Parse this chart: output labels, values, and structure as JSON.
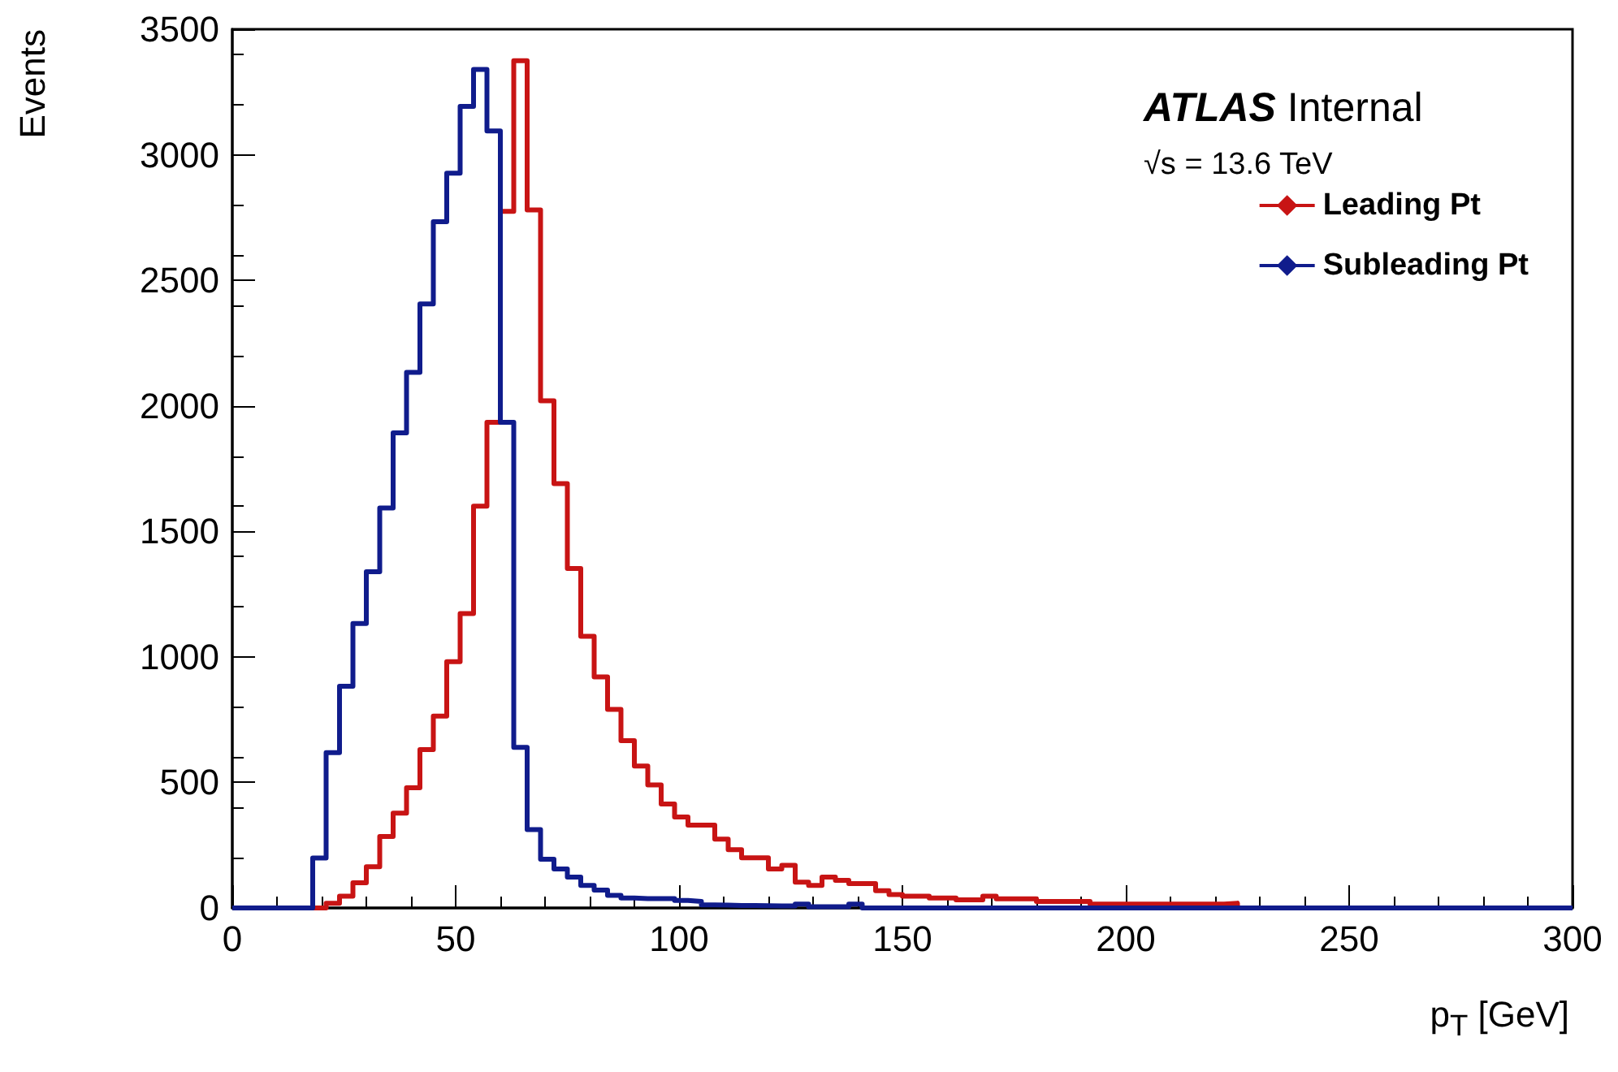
{
  "chart_data": {
    "type": "histogram",
    "xlabel": "p$_{T}$ [GeV]",
    "ylabel": "Events",
    "annotations": [
      "ATLAS Internal",
      "√s = 13.6 TeV"
    ],
    "bins": [
      0,
      3,
      6,
      9,
      12,
      15,
      18,
      21,
      24,
      27,
      30,
      33,
      36,
      39,
      42,
      45,
      48,
      51,
      54,
      57,
      60,
      63,
      66,
      69,
      72,
      75,
      78,
      81,
      84,
      87,
      90,
      93,
      96,
      99,
      102,
      105,
      108,
      111,
      114,
      117,
      120,
      123,
      126,
      129,
      132,
      135,
      138,
      141,
      144,
      147,
      150,
      153,
      156,
      159,
      162,
      165,
      168,
      171,
      174,
      177,
      180,
      183,
      186,
      189,
      192,
      195,
      198,
      201,
      204,
      207,
      210,
      213,
      216,
      219,
      222,
      225,
      228,
      231,
      234,
      237,
      240,
      243,
      246,
      249,
      252,
      255,
      258,
      261,
      264,
      267,
      270,
      273,
      276,
      279,
      282,
      285,
      288,
      291,
      294,
      297,
      300
    ],
    "series": [
      {
        "name": "Leading Pt",
        "color": "#c81414",
        "values": [
          0,
          0,
          0,
          0,
          0,
          0,
          0,
          19,
          47,
          100,
          164,
          285,
          378,
          479,
          631,
          764,
          981,
          1173,
          1600,
          1934,
          2775,
          3375,
          2780,
          2020,
          1690,
          1352,
          1082,
          920,
          791,
          666,
          565,
          490,
          414,
          362,
          330,
          330,
          274,
          232,
          200,
          200,
          155,
          170,
          103,
          90,
          123,
          110,
          97,
          97,
          69,
          53,
          47,
          47,
          40,
          40,
          32,
          32,
          47,
          36,
          36,
          36,
          26,
          26,
          26,
          26,
          15,
          15,
          15,
          15,
          15,
          15,
          15,
          15,
          15,
          15,
          19,
          0,
          0,
          0,
          0,
          0,
          0,
          0,
          0,
          0,
          0,
          0,
          0,
          0,
          0,
          0,
          0,
          0,
          0,
          0,
          0,
          0,
          0,
          0,
          0,
          0
        ]
      },
      {
        "name": "Subleading Pt",
        "color": "#101c8c",
        "values": [
          0,
          0,
          0,
          0,
          0,
          0,
          199,
          619,
          883,
          1133,
          1339,
          1593,
          1892,
          2133,
          2406,
          2733,
          2927,
          3193,
          3340,
          3095,
          1934,
          640,
          312,
          194,
          155,
          123,
          90,
          71,
          50,
          40,
          37,
          37,
          37,
          30,
          26,
          12,
          11,
          10,
          10,
          9,
          8,
          8,
          15,
          5,
          5,
          5,
          15,
          0,
          0,
          0,
          0,
          0,
          0,
          0,
          0,
          0,
          0,
          0,
          0,
          0,
          0,
          0,
          0,
          0,
          0,
          0,
          0,
          0,
          0,
          0,
          0,
          0,
          0,
          0,
          0,
          0,
          0,
          0,
          0,
          0,
          0,
          0,
          0,
          0,
          0,
          0,
          0,
          0,
          0,
          0,
          0,
          0,
          0,
          0,
          0,
          0,
          0,
          0,
          0,
          0
        ]
      }
    ],
    "xlim": [
      0,
      300
    ],
    "xticks": [
      0,
      50,
      100,
      150,
      200,
      250,
      300
    ],
    "ylim": [
      0,
      3500
    ],
    "yticks": [
      0,
      500,
      1000,
      1500,
      2000,
      2500,
      3000,
      3500
    ],
    "grid": false,
    "legend": "top right"
  }
}
